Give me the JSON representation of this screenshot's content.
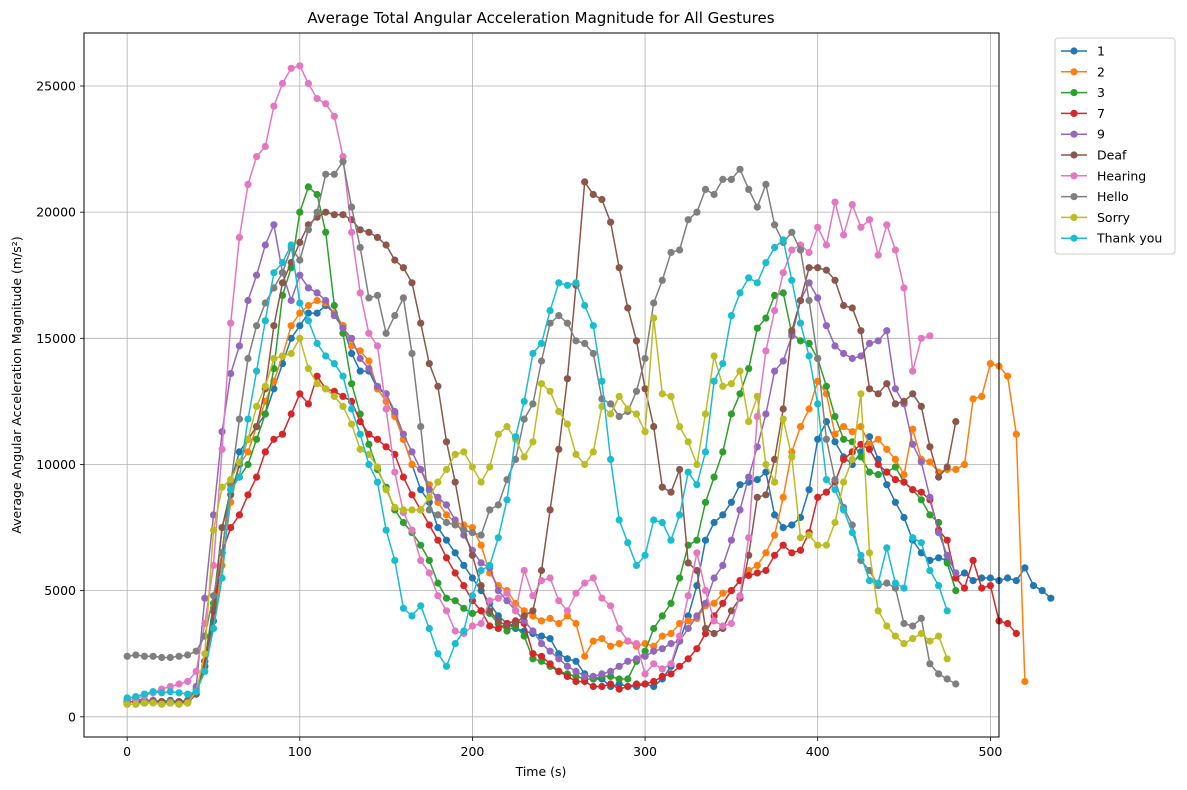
{
  "chart_data": {
    "type": "line",
    "title": "Average Total Angular Acceleration Magnitude for All Gestures",
    "xlabel": "Time (s)",
    "ylabel": "Average Angular Acceleration Magnitude (m/s²)",
    "xlim": [
      -25,
      505
    ],
    "ylim": [
      -800,
      27100
    ],
    "xticks": [
      0,
      100,
      200,
      300,
      400,
      500
    ],
    "yticks": [
      0,
      5000,
      10000,
      15000,
      20000,
      25000
    ],
    "grid": true,
    "legend_position": "outside-top-right",
    "markers": "circle",
    "x_step": 5,
    "series": [
      {
        "name": "1",
        "color": "#1f77b4",
        "values": [
          700,
          700,
          650,
          650,
          600,
          650,
          600,
          650,
          1100,
          2000,
          3800,
          6500,
          9300,
          10500,
          11000,
          11500,
          12000,
          13000,
          14000,
          15000,
          15500,
          16000,
          16000,
          16300,
          16000,
          15500,
          14400,
          13700,
          13700,
          13000,
          12800,
          12000,
          11000,
          10000,
          9000,
          8500,
          7500,
          7000,
          6500,
          6000,
          5500,
          5000,
          4500,
          4000,
          3700,
          3500,
          3400,
          3300,
          3200,
          3100,
          2500,
          2300,
          2200,
          1700,
          1500,
          1500,
          1200,
          1300,
          1200,
          1200,
          1300,
          1200,
          1500,
          2000,
          3000,
          4000,
          5200,
          7000,
          7700,
          8000,
          8500,
          9200,
          9300,
          9400,
          9700,
          8000,
          7500,
          7600,
          7900,
          9000,
          11000,
          11700,
          10900,
          10300,
          10000,
          10500,
          11100,
          10200,
          9200,
          8500,
          7900,
          7000,
          6500,
          6200,
          6300,
          6200,
          5500,
          5700,
          5400,
          5500,
          5500,
          5400,
          5500,
          5400,
          5900,
          5200,
          5000,
          4700
        ]
      },
      {
        "name": "2",
        "color": "#ff7f0e",
        "values": [
          600,
          600,
          650,
          650,
          600,
          600,
          600,
          600,
          1100,
          2000,
          3500,
          6000,
          8500,
          10000,
          10500,
          11500,
          12500,
          13300,
          14300,
          15500,
          16000,
          16300,
          16500,
          16400,
          16000,
          15500,
          14700,
          14500,
          14100,
          13000,
          12500,
          11900,
          11000,
          10000,
          9800,
          9200,
          8500,
          8000,
          7700,
          7600,
          7500,
          6800,
          5700,
          5200,
          5000,
          4500,
          4200,
          4000,
          3800,
          3900,
          3700,
          4000,
          3700,
          2400,
          3000,
          3100,
          2800,
          2900,
          3000,
          2800,
          2900,
          2800,
          3200,
          3300,
          3700,
          3800,
          3900,
          4400,
          4500,
          4900,
          5000,
          5400,
          5800,
          6000,
          6500,
          7200,
          8700,
          10500,
          11500,
          12200,
          13300,
          12800,
          11200,
          11500,
          11300,
          11500,
          10800,
          11000,
          10600,
          10200,
          9600,
          11400,
          10200,
          10100,
          9700,
          9800,
          9800,
          10000,
          12600,
          12700,
          14000,
          13900,
          13500,
          11200,
          1400
        ]
      },
      {
        "name": "3",
        "color": "#2ca02c",
        "values": [
          500,
          500,
          550,
          550,
          500,
          550,
          500,
          550,
          1000,
          2200,
          4500,
          7500,
          9000,
          9500,
          10000,
          11000,
          12000,
          13800,
          16700,
          17800,
          20000,
          21000,
          20700,
          19200,
          16300,
          15200,
          13200,
          12000,
          10800,
          9800,
          9100,
          8200,
          7700,
          7300,
          6800,
          6200,
          5300,
          4700,
          4600,
          4300,
          4100,
          4200,
          4100,
          3700,
          3400,
          3600,
          3200,
          2300,
          2200,
          2000,
          1800,
          1700,
          1600,
          1500,
          1500,
          1600,
          1600,
          1500,
          1500,
          2200,
          2600,
          3500,
          4000,
          4500,
          5500,
          6800,
          7000,
          8500,
          9500,
          10500,
          12000,
          12800,
          13800,
          15400,
          15800,
          16700,
          16800,
          15200,
          14900,
          14800,
          14200,
          13100,
          11900,
          11000,
          10900,
          10300,
          9700,
          9600,
          9700,
          9900,
          9300,
          9000,
          8600,
          8000,
          7700,
          6100,
          5000
        ]
      },
      {
        "name": "7",
        "color": "#d62728",
        "values": [
          600,
          600,
          550,
          600,
          600,
          550,
          600,
          550,
          900,
          2200,
          4200,
          6500,
          7500,
          8000,
          8800,
          9500,
          10500,
          11000,
          11200,
          12000,
          12800,
          12400,
          13500,
          13000,
          12900,
          12700,
          12500,
          11700,
          11200,
          11000,
          10700,
          10400,
          9500,
          8800,
          8200,
          7600,
          7000,
          6300,
          5700,
          5200,
          4600,
          4200,
          3600,
          3500,
          3700,
          3800,
          3700,
          2500,
          2400,
          2100,
          1800,
          1600,
          1400,
          1400,
          1200,
          1200,
          1300,
          1100,
          1200,
          1300,
          1300,
          1400,
          1600,
          1700,
          2000,
          2300,
          2700,
          3300,
          4000,
          4500,
          5000,
          5400,
          5600,
          5700,
          5800,
          6400,
          6800,
          6500,
          6600,
          7300,
          8700,
          8900,
          9300,
          10200,
          10500,
          10800,
          10600,
          10000,
          9700,
          9400,
          9300,
          9000,
          8900,
          8600,
          7400,
          7000,
          5500,
          5100,
          6200,
          5100,
          5200,
          3800,
          3700,
          3300
        ]
      },
      {
        "name": "9",
        "color": "#9467bd",
        "values": [
          600,
          600,
          650,
          650,
          600,
          600,
          600,
          600,
          1200,
          4700,
          8000,
          11300,
          13600,
          14700,
          16500,
          17500,
          18700,
          19500,
          17600,
          16500,
          17500,
          17000,
          16800,
          16500,
          15900,
          15400,
          15000,
          14200,
          13800,
          13100,
          12800,
          12100,
          11200,
          10500,
          9800,
          9000,
          8700,
          8400,
          7800,
          7200,
          6600,
          6100,
          5900,
          5000,
          4600,
          4200,
          3800,
          3400,
          2900,
          2600,
          2300,
          2000,
          1800,
          1600,
          1600,
          1700,
          1800,
          2000,
          2200,
          2300,
          2400,
          2600,
          2700,
          2900,
          3000,
          3500,
          4000,
          4500,
          5500,
          6000,
          7000,
          8200,
          9500,
          10700,
          12000,
          13700,
          14100,
          15100,
          16500,
          17200,
          16600,
          15500,
          14700,
          14400,
          14200,
          14300,
          14800,
          14900,
          15300,
          13000,
          12400,
          10800,
          10100,
          8700,
          7300,
          6400,
          5700
        ]
      },
      {
        "name": "Deaf",
        "color": "#8c564b",
        "values": [
          600,
          600,
          550,
          600,
          600,
          550,
          600,
          600,
          900,
          2000,
          4300,
          7500,
          8800,
          10000,
          11000,
          11500,
          13000,
          15500,
          17200,
          18000,
          18800,
          19500,
          19800,
          20000,
          19900,
          19900,
          19700,
          19300,
          19200,
          19000,
          18700,
          18100,
          17800,
          17200,
          15600,
          14000,
          13100,
          10900,
          9300,
          7400,
          6400,
          5200,
          4200,
          3800,
          3600,
          3700,
          4000,
          4200,
          5800,
          8200,
          10600,
          13400,
          17100,
          21200,
          20700,
          20500,
          19600,
          17800,
          16200,
          14900,
          13000,
          11500,
          9100,
          8900,
          9800,
          6100,
          5800,
          3500,
          3300,
          3500,
          4200,
          4700,
          6400,
          8700,
          8800,
          10200,
          12200,
          15300,
          16500,
          17800,
          17800,
          17700,
          17300,
          16300,
          16200,
          15300,
          13000,
          12800,
          13200,
          12400,
          12500,
          12800,
          12300,
          10700,
          9500,
          9900,
          11700
        ]
      },
      {
        "name": "Hearing",
        "color": "#e377c2",
        "values": [
          700,
          700,
          850,
          950,
          1100,
          1200,
          1300,
          1400,
          1800,
          3700,
          6000,
          10600,
          15600,
          19000,
          21100,
          22200,
          22600,
          24200,
          25100,
          25700,
          25800,
          25100,
          24500,
          24300,
          23800,
          22200,
          19200,
          16800,
          15200,
          14700,
          12200,
          9700,
          8100,
          7400,
          6200,
          5700,
          4800,
          4200,
          3400,
          3300,
          3600,
          3700,
          4600,
          4700,
          4900,
          4200,
          5800,
          4800,
          5400,
          5500,
          4600,
          4200,
          4900,
          5300,
          5500,
          4700,
          4400,
          3500,
          3000,
          2900,
          1700,
          2100,
          1900,
          2100,
          3200,
          4800,
          6500,
          5000,
          3800,
          3600,
          3700,
          4800,
          7100,
          11900,
          14500,
          16100,
          17600,
          18500,
          18700,
          18400,
          19400,
          18700,
          20400,
          19100,
          20300,
          19400,
          19700,
          18300,
          19500,
          18500,
          17000,
          13700,
          15000,
          15100
        ]
      },
      {
        "name": "Hello",
        "color": "#7f7f7f",
        "values": [
          2400,
          2450,
          2400,
          2400,
          2350,
          2350,
          2400,
          2450,
          2600,
          3200,
          4800,
          6500,
          9200,
          11800,
          14200,
          15500,
          16400,
          17000,
          17600,
          18600,
          18100,
          19300,
          20000,
          21500,
          21500,
          22000,
          20200,
          18600,
          16600,
          16700,
          15200,
          15900,
          16600,
          14400,
          11500,
          8200,
          8000,
          7700,
          7600,
          7400,
          7300,
          7200,
          8200,
          8400,
          9400,
          10200,
          11800,
          12400,
          14100,
          15600,
          15900,
          15600,
          14900,
          14800,
          14400,
          12600,
          12400,
          11900,
          12100,
          12900,
          14200,
          16400,
          17300,
          18400,
          18500,
          19700,
          20000,
          20900,
          20700,
          21300,
          21300,
          21700,
          20900,
          20200,
          21100,
          19500,
          18800,
          19200,
          18500,
          16500,
          14200,
          11000,
          9400,
          8300,
          7600,
          6200,
          5800,
          5200,
          5300,
          5100,
          3700,
          3600,
          3900,
          2100,
          1700,
          1500,
          1300
        ]
      },
      {
        "name": "Sorry",
        "color": "#bcbd22",
        "values": [
          500,
          500,
          550,
          550,
          500,
          550,
          500,
          550,
          1000,
          2500,
          7400,
          9100,
          9400,
          10100,
          11000,
          12300,
          13100,
          14200,
          14300,
          14400,
          15000,
          13800,
          13200,
          13000,
          12700,
          12300,
          11600,
          10600,
          10400,
          9900,
          9000,
          8300,
          8200,
          8200,
          8200,
          8700,
          9300,
          9800,
          10400,
          10500,
          9900,
          9300,
          9900,
          11200,
          11500,
          11000,
          10300,
          10900,
          13200,
          12900,
          12100,
          11600,
          10400,
          10000,
          10500,
          12300,
          12000,
          12700,
          12200,
          12000,
          11300,
          15800,
          12800,
          12700,
          11500,
          10900,
          10000,
          12000,
          14300,
          13100,
          13200,
          13700,
          11700,
          12700,
          10000,
          9300,
          11800,
          10300,
          7100,
          7200,
          6800,
          6800,
          7700,
          9300,
          10200,
          12800,
          6500,
          4200,
          3600,
          3200,
          2900,
          3100,
          3300,
          3000,
          3200,
          2300
        ]
      },
      {
        "name": "Thank you",
        "color": "#17becf",
        "values": [
          750,
          800,
          900,
          1000,
          950,
          1000,
          950,
          900,
          1000,
          1800,
          3500,
          5500,
          9000,
          9500,
          11800,
          13700,
          15700,
          17600,
          18000,
          18700,
          16400,
          15700,
          14800,
          14300,
          14000,
          13500,
          12200,
          11200,
          10000,
          9300,
          7400,
          6200,
          4300,
          4000,
          4400,
          3500,
          2500,
          2000,
          2900,
          3400,
          4800,
          5800,
          6000,
          7100,
          8600,
          11100,
          12500,
          14400,
          14800,
          16100,
          17200,
          17100,
          17200,
          16300,
          15500,
          13300,
          10200,
          7800,
          6900,
          6000,
          6400,
          7800,
          7700,
          7000,
          8000,
          9700,
          9200,
          10500,
          13300,
          14000,
          15900,
          16800,
          17400,
          17200,
          18000,
          18600,
          18900,
          17300,
          15600,
          14300,
          12400,
          9400,
          9000,
          8200,
          7300,
          6400,
          5400,
          5300,
          6700,
          5300,
          5100,
          7100,
          6900,
          5800,
          5200,
          4200
        ]
      }
    ]
  }
}
